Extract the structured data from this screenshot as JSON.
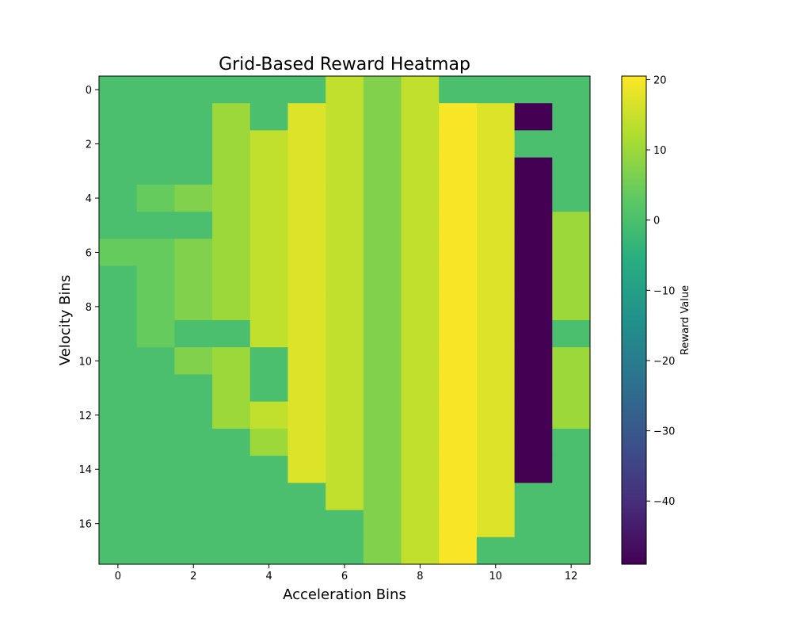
{
  "chart_data": {
    "type": "heatmap",
    "title": "Grid-Based Reward Heatmap",
    "xlabel": "Acceleration Bins",
    "ylabel": "Velocity Bins",
    "x_ticks": [
      "0",
      "2",
      "4",
      "6",
      "8",
      "10",
      "12"
    ],
    "y_ticks": [
      "0",
      "2",
      "4",
      "6",
      "8",
      "10",
      "12",
      "14",
      "16"
    ],
    "colormap": "viridis",
    "colorbar": {
      "label": "Reward Value",
      "min": -49,
      "max": 20.5,
      "ticks": [
        "20",
        "10",
        "0",
        "−10",
        "−20",
        "−30",
        "−40"
      ]
    },
    "grid": false,
    "values": [
      [
        0,
        0,
        0,
        0,
        0,
        0,
        14,
        7,
        14,
        0,
        0,
        0,
        0
      ],
      [
        0,
        0,
        0,
        10,
        0,
        17,
        14,
        7,
        14,
        20,
        17,
        -49,
        0
      ],
      [
        0,
        0,
        0,
        10,
        14,
        17,
        14,
        7,
        14,
        20,
        17,
        0,
        0
      ],
      [
        0,
        0,
        0,
        10,
        14,
        17,
        14,
        7,
        14,
        20,
        17,
        -49,
        0
      ],
      [
        0,
        4,
        7,
        10,
        14,
        17,
        14,
        7,
        14,
        20,
        17,
        -49,
        0
      ],
      [
        0,
        0,
        0,
        10,
        14,
        17,
        14,
        7,
        14,
        20,
        17,
        -49,
        10
      ],
      [
        4,
        4,
        7,
        10,
        14,
        17,
        14,
        7,
        14,
        20,
        17,
        -49,
        10
      ],
      [
        0,
        4,
        7,
        10,
        14,
        17,
        14,
        7,
        14,
        20,
        17,
        -49,
        10
      ],
      [
        0,
        4,
        7,
        10,
        14,
        17,
        14,
        7,
        14,
        20,
        17,
        -49,
        10
      ],
      [
        0,
        4,
        0,
        0,
        14,
        17,
        14,
        7,
        14,
        20,
        17,
        -49,
        0
      ],
      [
        0,
        0,
        7,
        10,
        0,
        17,
        14,
        7,
        14,
        20,
        17,
        -49,
        10
      ],
      [
        0,
        0,
        0,
        10,
        0,
        17,
        14,
        7,
        14,
        20,
        17,
        -49,
        10
      ],
      [
        0,
        0,
        0,
        10,
        14,
        17,
        14,
        7,
        14,
        20,
        17,
        -49,
        10
      ],
      [
        0,
        0,
        0,
        0,
        10,
        17,
        14,
        7,
        14,
        20,
        17,
        -49,
        0
      ],
      [
        0,
        0,
        0,
        0,
        0,
        17,
        14,
        7,
        14,
        20,
        17,
        -49,
        0
      ],
      [
        0,
        0,
        0,
        0,
        0,
        0,
        14,
        7,
        14,
        20,
        17,
        0,
        0
      ],
      [
        0,
        0,
        0,
        0,
        0,
        0,
        0,
        7,
        14,
        20,
        17,
        0,
        0
      ],
      [
        0,
        0,
        0,
        0,
        0,
        0,
        0,
        7,
        14,
        20,
        0,
        0,
        0
      ]
    ]
  }
}
